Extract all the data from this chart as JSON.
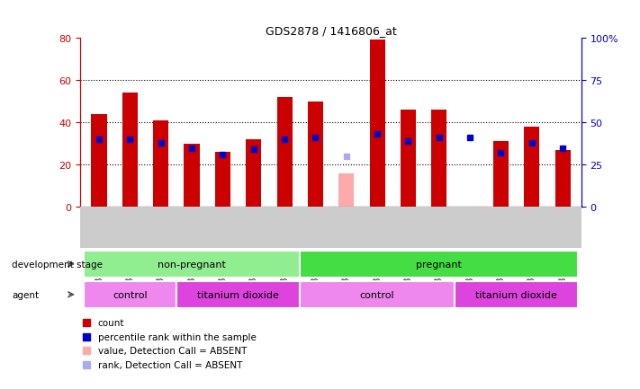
{
  "title": "GDS2878 / 1416806_at",
  "samples": [
    "GSM180976",
    "GSM180985",
    "GSM180989",
    "GSM180978",
    "GSM180979",
    "GSM180980",
    "GSM180981",
    "GSM180975",
    "GSM180977",
    "GSM180984",
    "GSM180986",
    "GSM180990",
    "GSM180982",
    "GSM180983",
    "GSM180987",
    "GSM180988"
  ],
  "count_values": [
    44,
    54,
    41,
    30,
    26,
    32,
    52,
    50,
    null,
    79,
    46,
    46,
    null,
    31,
    38,
    27
  ],
  "count_absent": [
    null,
    null,
    null,
    null,
    null,
    null,
    null,
    null,
    16,
    null,
    null,
    null,
    null,
    null,
    null,
    null
  ],
  "rank_values": [
    40,
    40,
    38,
    35,
    31,
    34,
    40,
    41,
    null,
    43,
    39,
    41,
    41,
    32,
    38,
    35
  ],
  "rank_absent": [
    null,
    null,
    null,
    null,
    null,
    null,
    null,
    null,
    30,
    null,
    null,
    null,
    null,
    null,
    null,
    null
  ],
  "ylim_left": [
    0,
    80
  ],
  "ylim_right": [
    0,
    100
  ],
  "yticks_left": [
    0,
    20,
    40,
    60,
    80
  ],
  "yticks_right": [
    0,
    25,
    50,
    75,
    100
  ],
  "dev_stage_groups": [
    {
      "label": "non-pregnant",
      "start": 0,
      "end": 6,
      "color": "#90ee90"
    },
    {
      "label": "pregnant",
      "start": 7,
      "end": 15,
      "color": "#44dd44"
    }
  ],
  "agent_groups": [
    {
      "label": "control",
      "start": 0,
      "end": 2,
      "color": "#ee88ee"
    },
    {
      "label": "titanium dioxide",
      "start": 3,
      "end": 6,
      "color": "#dd44dd"
    },
    {
      "label": "control",
      "start": 7,
      "end": 11,
      "color": "#ee88ee"
    },
    {
      "label": "titanium dioxide",
      "start": 12,
      "end": 15,
      "color": "#dd44dd"
    }
  ],
  "bar_color_count": "#cc0000",
  "bar_color_absent": "#ffaaaa",
  "marker_color_rank": "#0000cc",
  "marker_color_rank_absent": "#aaaaee",
  "bar_width": 0.5,
  "marker_size": 5,
  "left_axis_color": "#cc0000",
  "right_axis_color": "#0000cc",
  "xtick_bg_color": "#cccccc",
  "legend_items": [
    {
      "color": "#cc0000",
      "label": "count"
    },
    {
      "color": "#0000cc",
      "label": "percentile rank within the sample"
    },
    {
      "color": "#ffaaaa",
      "label": "value, Detection Call = ABSENT"
    },
    {
      "color": "#aaaaee",
      "label": "rank, Detection Call = ABSENT"
    }
  ]
}
